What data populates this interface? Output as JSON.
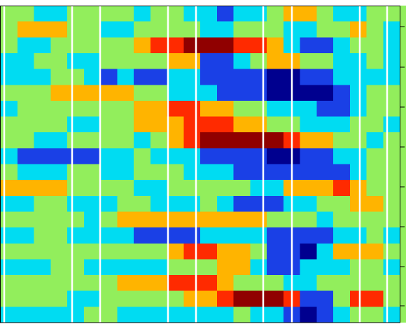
{
  "chart_data": {
    "type": "contour",
    "levels": [
      -3,
      -2,
      -1,
      0,
      1,
      2,
      3
    ],
    "colors": [
      "#00008f",
      "#1a40e6",
      "#00dcf2",
      "#92ee5c",
      "#ffb400",
      "#ff2a00",
      "#900000"
    ],
    "z": [
      [
        0,
        0,
        -1,
        -1,
        0,
        0,
        0,
        0,
        -1,
        0,
        0,
        -1,
        -1,
        -2,
        -1,
        -1,
        0,
        1,
        1,
        0,
        -1,
        -1,
        0,
        0
      ],
      [
        0,
        1,
        1,
        1,
        0,
        0,
        -1,
        -1,
        0,
        0,
        0,
        0,
        -1,
        -1,
        0,
        0,
        0,
        -1,
        -1,
        0,
        0,
        1,
        0,
        -1
      ],
      [
        0,
        -1,
        -1,
        0,
        0,
        0,
        0,
        0,
        1,
        2,
        2,
        3,
        3,
        3,
        2,
        2,
        1,
        -1,
        -2,
        -2,
        -1,
        0,
        0,
        -1
      ],
      [
        -1,
        -1,
        0,
        0,
        -1,
        -1,
        0,
        0,
        0,
        0,
        1,
        1,
        -2,
        -2,
        -1,
        0,
        1,
        1,
        0,
        0,
        -1,
        -1,
        0,
        -1
      ],
      [
        -1,
        -1,
        -1,
        0,
        0,
        -1,
        -2,
        -1,
        -2,
        -2,
        -1,
        -1,
        -2,
        -2,
        -2,
        -2,
        -3,
        -3,
        -2,
        -2,
        -1,
        -1,
        -1,
        -1
      ],
      [
        0,
        0,
        0,
        1,
        1,
        1,
        1,
        1,
        0,
        0,
        -1,
        -1,
        -1,
        -2,
        -2,
        -2,
        -3,
        -3,
        -3,
        -3,
        -2,
        -1,
        0,
        0
      ],
      [
        -1,
        0,
        0,
        0,
        0,
        0,
        0,
        0,
        1,
        1,
        2,
        2,
        1,
        1,
        0,
        0,
        -1,
        -1,
        -1,
        -2,
        -2,
        -1,
        0,
        0
      ],
      [
        0,
        0,
        0,
        0,
        -1,
        -1,
        0,
        0,
        1,
        1,
        1,
        2,
        2,
        2,
        1,
        1,
        0,
        0,
        -1,
        -1,
        -1,
        0,
        0,
        -1
      ],
      [
        0,
        0,
        -1,
        -1,
        0,
        0,
        0,
        0,
        -1,
        0,
        1,
        2,
        3,
        3,
        3,
        3,
        3,
        2,
        1,
        1,
        0,
        0,
        -1,
        0
      ],
      [
        -1,
        -2,
        -2,
        -2,
        -2,
        -2,
        -1,
        -1,
        0,
        -1,
        -1,
        -1,
        -2,
        -2,
        -2,
        -2,
        -3,
        -3,
        -2,
        -2,
        -1,
        -1,
        0,
        0
      ],
      [
        0,
        -1,
        -1,
        -1,
        0,
        0,
        -1,
        -1,
        0,
        0,
        0,
        -1,
        -1,
        -1,
        -2,
        -2,
        -2,
        -2,
        -2,
        -2,
        -2,
        -1,
        0,
        0
      ],
      [
        1,
        1,
        1,
        1,
        0,
        0,
        0,
        0,
        -1,
        -1,
        0,
        0,
        0,
        0,
        0,
        -1,
        -1,
        1,
        1,
        1,
        2,
        1,
        0,
        0
      ],
      [
        -1,
        -1,
        0,
        0,
        -1,
        -1,
        -1,
        0,
        0,
        -1,
        -1,
        -1,
        0,
        -1,
        -2,
        -2,
        -2,
        -1,
        -1,
        0,
        0,
        1,
        1,
        0
      ],
      [
        0,
        0,
        0,
        0,
        0,
        -1,
        0,
        1,
        1,
        1,
        1,
        1,
        1,
        1,
        1,
        1,
        0,
        0,
        0,
        -1,
        0,
        0,
        0,
        0
      ],
      [
        -1,
        -1,
        0,
        0,
        -1,
        -1,
        -1,
        -1,
        -2,
        -2,
        -2,
        -2,
        -1,
        -1,
        -1,
        -1,
        -2,
        -2,
        -2,
        -2,
        -1,
        -1,
        0,
        -1
      ],
      [
        0,
        0,
        0,
        0,
        0,
        0,
        0,
        0,
        0,
        0,
        1,
        2,
        2,
        1,
        1,
        0,
        -2,
        -2,
        -3,
        -1,
        1,
        1,
        1,
        0
      ],
      [
        -1,
        -1,
        -1,
        0,
        0,
        -1,
        -1,
        -1,
        -1,
        -1,
        0,
        0,
        0,
        1,
        1,
        -1,
        -2,
        -2,
        -1,
        -1,
        -1,
        0,
        0,
        -1
      ],
      [
        0,
        0,
        0,
        0,
        0,
        0,
        0,
        1,
        1,
        1,
        2,
        2,
        2,
        1,
        0,
        0,
        0,
        -1,
        -1,
        0,
        0,
        0,
        0,
        0
      ],
      [
        0,
        0,
        0,
        0,
        -1,
        -1,
        0,
        0,
        0,
        0,
        0,
        1,
        1,
        2,
        3,
        3,
        3,
        2,
        -2,
        -2,
        0,
        2,
        2,
        0
      ],
      [
        -1,
        -1,
        -1,
        -1,
        -1,
        0,
        0,
        -1,
        -1,
        -1,
        -1,
        -1,
        -1,
        -1,
        0,
        -1,
        -1,
        -2,
        -3,
        -2,
        -1,
        0,
        0,
        -1
      ]
    ]
  }
}
